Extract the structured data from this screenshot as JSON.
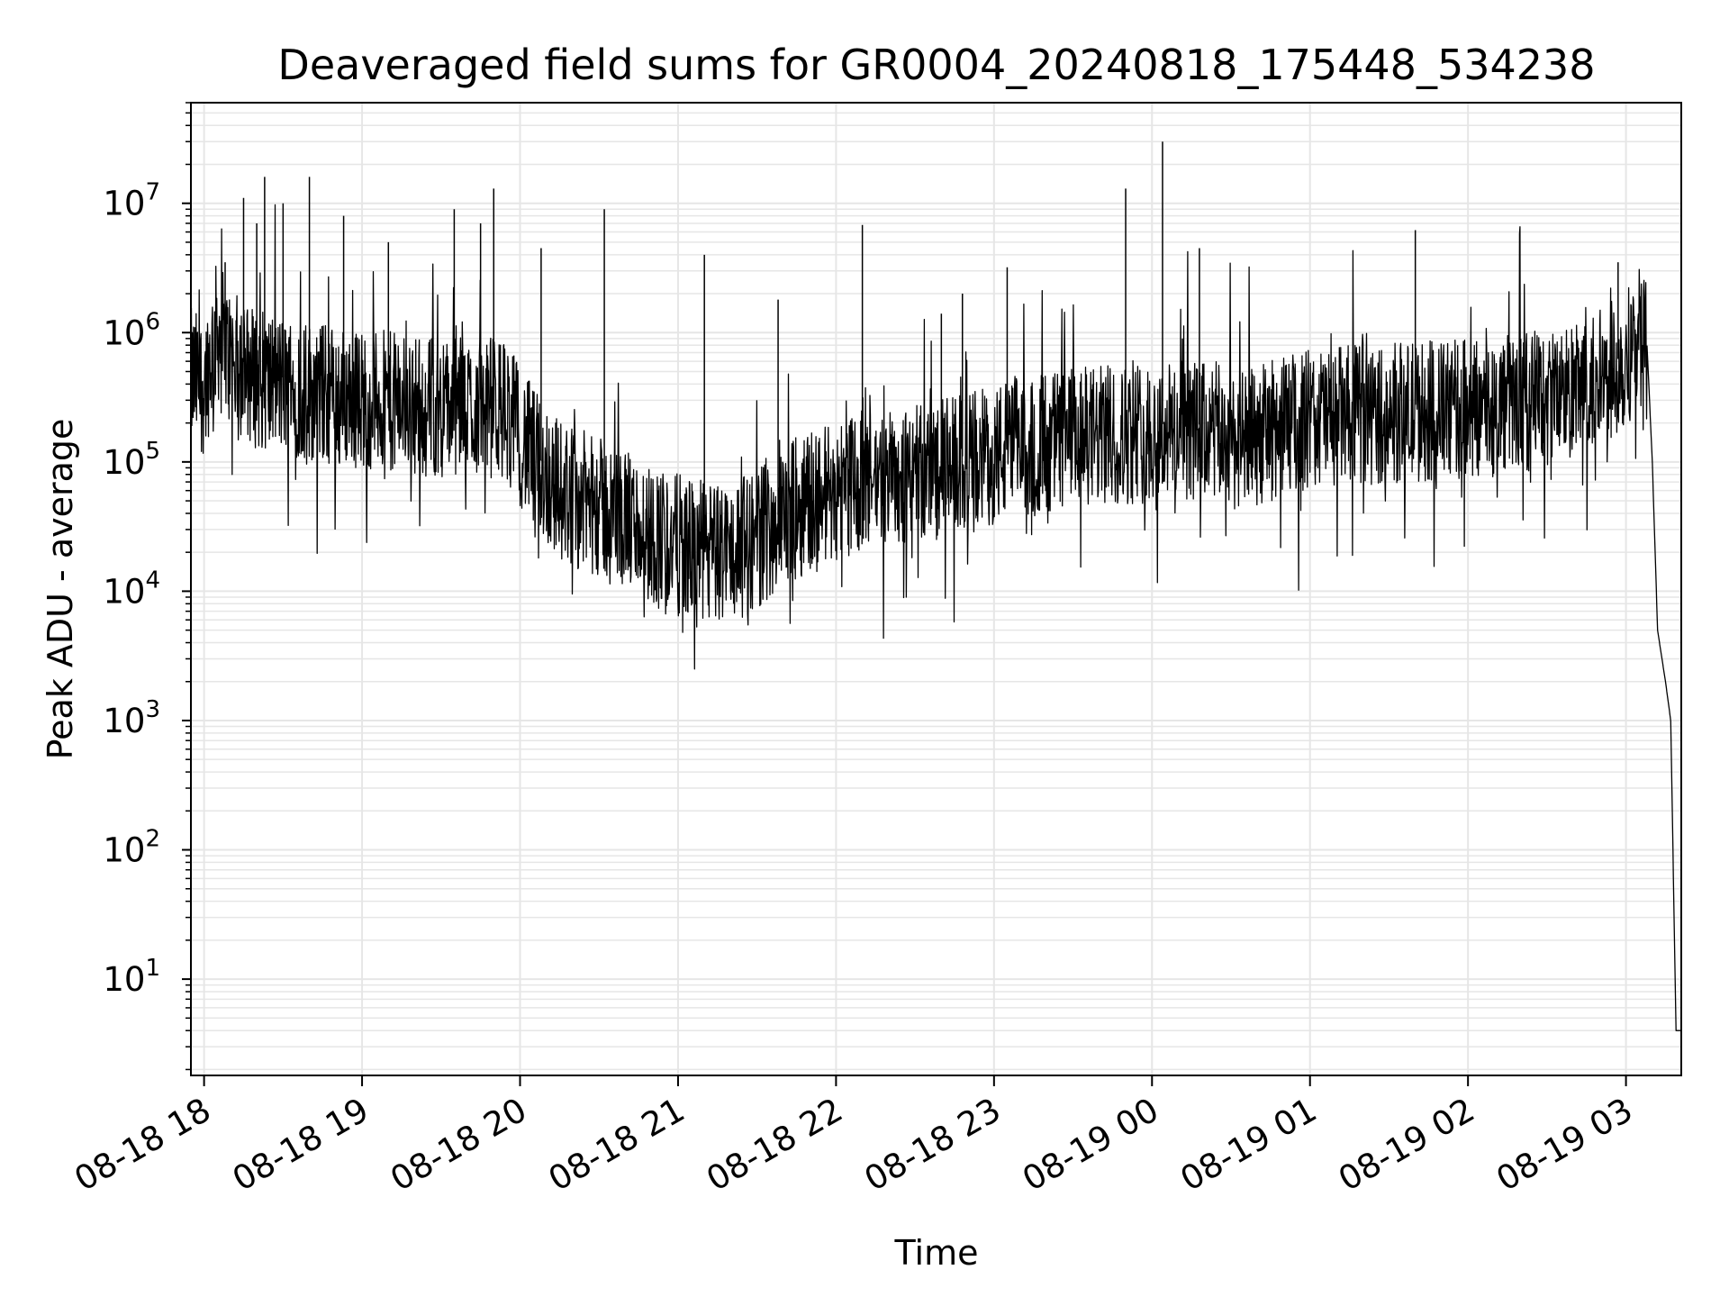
{
  "chart_data": {
    "type": "line",
    "title": "Deaveraged field sums for GR0004_20240818_175448_534238",
    "xlabel": "Time",
    "ylabel": "Peak ADU - average",
    "yscale": "log",
    "ylim": [
      1.8,
      60000000
    ],
    "xlim": [
      "08-18 17:55",
      "08-19 03:21"
    ],
    "grid": "on",
    "line_color": "#000000",
    "grid_color": "#e6e6e6",
    "x_ticks": [
      {
        "t": "08-18 18:00",
        "label": "08-18 18"
      },
      {
        "t": "08-18 19:00",
        "label": "08-18 19"
      },
      {
        "t": "08-18 20:00",
        "label": "08-18 20"
      },
      {
        "t": "08-18 21:00",
        "label": "08-18 21"
      },
      {
        "t": "08-18 22:00",
        "label": "08-18 22"
      },
      {
        "t": "08-18 23:00",
        "label": "08-18 23"
      },
      {
        "t": "08-19 00:00",
        "label": "08-19 00"
      },
      {
        "t": "08-19 01:00",
        "label": "08-19 01"
      },
      {
        "t": "08-19 02:00",
        "label": "08-19 02"
      },
      {
        "t": "08-19 03:00",
        "label": "08-19 03"
      }
    ],
    "y_ticks": [
      {
        "value": 10,
        "base": "10",
        "exp": "1"
      },
      {
        "value": 100,
        "base": "10",
        "exp": "2"
      },
      {
        "value": 1000,
        "base": "10",
        "exp": "3"
      },
      {
        "value": 10000,
        "base": "10",
        "exp": "4"
      },
      {
        "value": 100000,
        "base": "10",
        "exp": "5"
      },
      {
        "value": 1000000,
        "base": "10",
        "exp": "6"
      },
      {
        "value": 10000000,
        "base": "10",
        "exp": "7"
      }
    ],
    "series": [
      {
        "points": [
          [
            "08-18 17:55",
            500000
          ],
          [
            "08-18 18:00",
            450000
          ],
          [
            "08-18 18:05",
            1200000
          ],
          [
            "08-18 18:10",
            700000
          ],
          [
            "08-18 18:20",
            500000
          ],
          [
            "08-18 18:30",
            450000
          ],
          [
            "08-18 18:40",
            400000
          ],
          [
            "08-18 18:50",
            380000
          ],
          [
            "08-18 19:00",
            350000
          ],
          [
            "08-18 19:10",
            330000
          ],
          [
            "08-18 19:20",
            320000
          ],
          [
            "08-18 19:30",
            300000
          ],
          [
            "08-18 19:40",
            310000
          ],
          [
            "08-18 19:50",
            300000
          ],
          [
            "08-18 19:55",
            280000
          ],
          [
            "08-18 20:05",
            120000
          ],
          [
            "08-18 20:15",
            70000
          ],
          [
            "08-18 20:25",
            55000
          ],
          [
            "08-18 20:35",
            45000
          ],
          [
            "08-18 20:45",
            35000
          ],
          [
            "08-18 20:55",
            28000
          ],
          [
            "08-18 21:05",
            24000
          ],
          [
            "08-18 21:15",
            22000
          ],
          [
            "08-18 21:25",
            25000
          ],
          [
            "08-18 21:35",
            35000
          ],
          [
            "08-18 21:45",
            50000
          ],
          [
            "08-18 21:55",
            65000
          ],
          [
            "08-18 22:10",
            80000
          ],
          [
            "08-18 22:25",
            90000
          ],
          [
            "08-18 22:40",
            100000
          ],
          [
            "08-18 22:55",
            120000
          ],
          [
            "08-18 23:10",
            150000
          ],
          [
            "08-18 23:25",
            170000
          ],
          [
            "08-18 23:40",
            180000
          ],
          [
            "08-18 23:55",
            190000
          ],
          [
            "08-19 00:10",
            200000
          ],
          [
            "08-19 00:25",
            190000
          ],
          [
            "08-19 00:35",
            160000
          ],
          [
            "08-19 00:45",
            200000
          ],
          [
            "08-19 01:00",
            250000
          ],
          [
            "08-19 01:15",
            260000
          ],
          [
            "08-19 01:30",
            270000
          ],
          [
            "08-19 01:45",
            280000
          ],
          [
            "08-19 02:00",
            290000
          ],
          [
            "08-19 02:15",
            320000
          ],
          [
            "08-19 02:30",
            360000
          ],
          [
            "08-19 02:45",
            400000
          ],
          [
            "08-19 03:00",
            700000
          ],
          [
            "08-19 03:05",
            1200000
          ],
          [
            "08-19 03:08",
            800000
          ],
          [
            "08-19 03:10",
            100000
          ],
          [
            "08-19 03:12",
            5000
          ],
          [
            "08-19 03:15",
            2000
          ],
          [
            "08-19 03:17",
            1000
          ],
          [
            "08-19 03:19",
            4
          ],
          [
            "08-19 03:21",
            4
          ]
        ]
      }
    ],
    "spikes": [
      [
        "08-18 18:08",
        3500000
      ],
      [
        "08-18 18:15",
        11000000
      ],
      [
        "08-18 18:20",
        7000000
      ],
      [
        "08-18 18:23",
        16000000
      ],
      [
        "08-18 18:30",
        10000000
      ],
      [
        "08-18 18:40",
        16000000
      ],
      [
        "08-18 18:53",
        8000000
      ],
      [
        "08-18 19:10",
        5000000
      ],
      [
        "08-18 19:35",
        9000000
      ],
      [
        "08-18 19:45",
        7000000
      ],
      [
        "08-18 19:50",
        13000000
      ],
      [
        "08-18 20:08",
        4500000
      ],
      [
        "08-18 20:32",
        9000000
      ],
      [
        "08-18 21:10",
        4000000
      ],
      [
        "08-18 21:38",
        1800000
      ],
      [
        "08-18 22:10",
        6800000
      ],
      [
        "08-18 22:40",
        1400000
      ],
      [
        "08-18 22:48",
        2000000
      ],
      [
        "08-18 23:05",
        3200000
      ],
      [
        "08-18 23:50",
        13000000
      ],
      [
        "08-19 00:04",
        30000000
      ],
      [
        "08-19 00:18",
        4500000
      ],
      [
        "08-19 01:40",
        6200000
      ],
      [
        "08-19 02:57",
        3500000
      ]
    ]
  }
}
